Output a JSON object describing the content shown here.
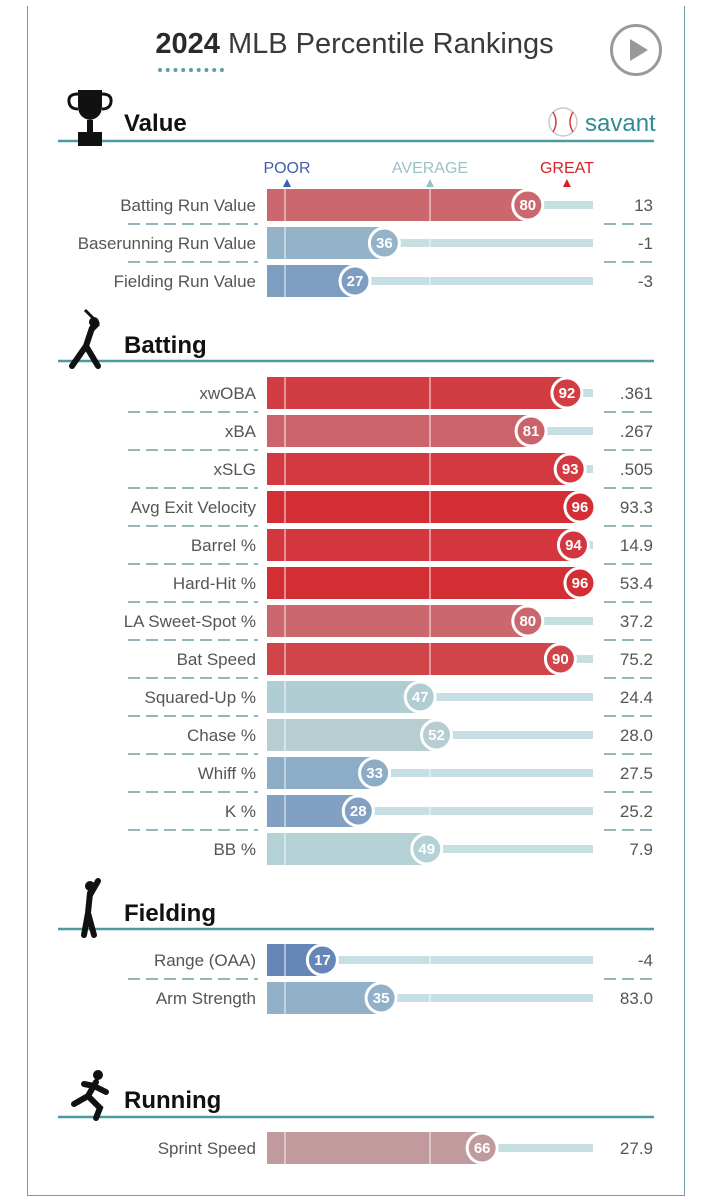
{
  "header": {
    "year": "2024",
    "title_rest": "MLB Percentile Rankings",
    "brand": "savant"
  },
  "legend": {
    "poor": "POOR",
    "average": "AVERAGE",
    "great": "GREAT"
  },
  "colors": {
    "frame": "#6f9ea3",
    "section_rule": "#4a9aa0",
    "track": "#c6dfe2",
    "great_red": "#d72027",
    "average_gray": "#b6d4d6",
    "poor_blue": "#3d5ea8",
    "savant_teal": "#2f8c94"
  },
  "chart_data": {
    "type": "bar",
    "title": "2024 MLB Percentile Rankings",
    "xlim": [
      0,
      100
    ],
    "sections": [
      {
        "name": "Value",
        "icon": "trophy-icon",
        "metrics": [
          {
            "label": "Batting Run Value",
            "percentile": 80,
            "value": "13"
          },
          {
            "label": "Baserunning Run Value",
            "percentile": 36,
            "value": "-1"
          },
          {
            "label": "Fielding Run Value",
            "percentile": 27,
            "value": "-3"
          }
        ]
      },
      {
        "name": "Batting",
        "icon": "batter-icon",
        "metrics": [
          {
            "label": "xwOBA",
            "percentile": 92,
            "value": ".361"
          },
          {
            "label": "xBA",
            "percentile": 81,
            "value": ".267"
          },
          {
            "label": "xSLG",
            "percentile": 93,
            "value": ".505"
          },
          {
            "label": "Avg Exit Velocity",
            "percentile": 96,
            "value": "93.3"
          },
          {
            "label": "Barrel %",
            "percentile": 94,
            "value": "14.9"
          },
          {
            "label": "Hard-Hit %",
            "percentile": 96,
            "value": "53.4"
          },
          {
            "label": "LA Sweet-Spot %",
            "percentile": 80,
            "value": "37.2"
          },
          {
            "label": "Bat Speed",
            "percentile": 90,
            "value": "75.2"
          },
          {
            "label": "Squared-Up %",
            "percentile": 47,
            "value": "24.4"
          },
          {
            "label": "Chase %",
            "percentile": 52,
            "value": "28.0"
          },
          {
            "label": "Whiff %",
            "percentile": 33,
            "value": "27.5"
          },
          {
            "label": "K %",
            "percentile": 28,
            "value": "25.2"
          },
          {
            "label": "BB %",
            "percentile": 49,
            "value": "7.9"
          }
        ]
      },
      {
        "name": "Fielding",
        "icon": "fielder-icon",
        "metrics": [
          {
            "label": "Range (OAA)",
            "percentile": 17,
            "value": "-4"
          },
          {
            "label": "Arm Strength",
            "percentile": 35,
            "value": "83.0"
          }
        ]
      },
      {
        "name": "Running",
        "icon": "runner-icon",
        "metrics": [
          {
            "label": "Sprint Speed",
            "percentile": 66,
            "value": "27.9"
          }
        ]
      }
    ]
  }
}
